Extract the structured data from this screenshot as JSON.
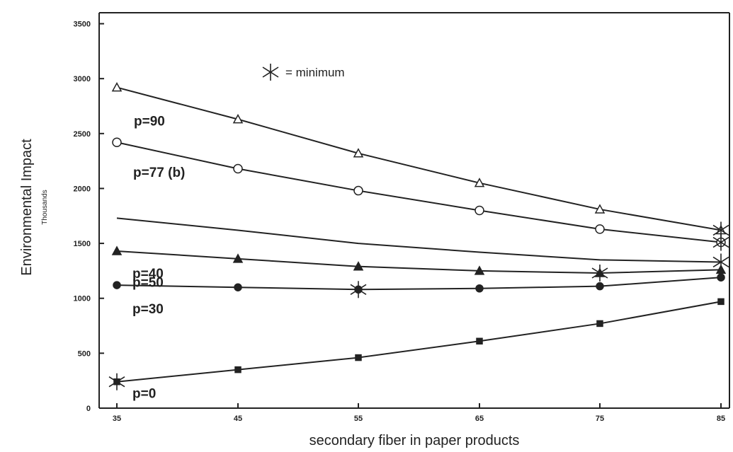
{
  "chart_data": {
    "type": "line",
    "title": "",
    "xlabel": "secondary fiber in paper products",
    "ylabel": "Environmental Impact",
    "ylabel_unit": "Thousands",
    "x": [
      35,
      45,
      55,
      65,
      75,
      85
    ],
    "x_tick_labels": [
      "35",
      "45",
      "55",
      "65",
      "75",
      "85"
    ],
    "xlim": [
      35,
      85
    ],
    "ylim": [
      0,
      3600
    ],
    "y_ticks": [
      0,
      500,
      1000,
      1500,
      2000,
      2500,
      3000,
      3500
    ],
    "y_tick_labels": [
      "0",
      "500",
      "1000",
      "1500",
      "2000",
      "2500",
      "3000",
      "3500"
    ],
    "grid": false,
    "legend": {
      "placement": "top-left",
      "marker": "star",
      "text": "= minimum"
    },
    "series": [
      {
        "name": "p=90",
        "marker": "open-triangle",
        "values": [
          2920,
          2630,
          2320,
          2050,
          1810,
          1620
        ],
        "label_anchor_index": 0,
        "min_index": 5
      },
      {
        "name": "p=77 (b)",
        "marker": "open-circle",
        "values": [
          2420,
          2180,
          1980,
          1800,
          1630,
          1510
        ],
        "label_anchor_index": 0,
        "min_index": 5
      },
      {
        "name": "p=50",
        "marker": "none",
        "values": [
          1730,
          1620,
          1500,
          1420,
          1350,
          1330
        ],
        "label_anchor_index": 0,
        "min_index": 5
      },
      {
        "name": "p=40",
        "marker": "filled-triangle",
        "values": [
          1430,
          1360,
          1290,
          1250,
          1230,
          1260
        ],
        "label_anchor_index": 0,
        "min_index": 4
      },
      {
        "name": "p=30",
        "marker": "filled-circle",
        "values": [
          1120,
          1100,
          1080,
          1090,
          1110,
          1190
        ],
        "label_anchor_index": 0,
        "min_index": 2
      },
      {
        "name": "p=0",
        "marker": "filled-square",
        "values": [
          240,
          350,
          460,
          610,
          770,
          970
        ],
        "label_anchor_index": 0,
        "min_index": 0
      }
    ]
  }
}
